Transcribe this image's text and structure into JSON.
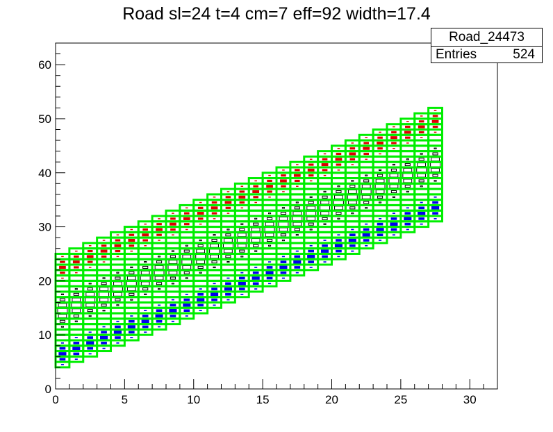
{
  "title": "Road sl=24 t=4 cm=7 eff=92 width=17.4",
  "stats": {
    "name": "Road_24473",
    "entries_label": "Entries",
    "entries_value": "524"
  },
  "colors": {
    "road": "#00ee00",
    "black": "#000000",
    "red": "#dd0000",
    "blue": "#0000ee"
  },
  "chart_data": {
    "type": "heatmap",
    "title": "Road sl=24 t=4 cm=7 eff=92 width=17.4",
    "xlim": [
      0,
      32
    ],
    "ylim": [
      0,
      64
    ],
    "xticks": [
      0,
      5,
      10,
      15,
      20,
      25,
      30
    ],
    "yticks": [
      0,
      10,
      20,
      30,
      40,
      50,
      60
    ],
    "road": {
      "column_width": 1,
      "row_height": 1,
      "rows_per_column": 21,
      "lowest_row_by_column": [
        4,
        5,
        6,
        7,
        8,
        9,
        10,
        11,
        12,
        13,
        14,
        15,
        16,
        17,
        18,
        19,
        20,
        21,
        22,
        23,
        24,
        25,
        26,
        27,
        28,
        29,
        30,
        31
      ]
    },
    "series": [
      {
        "name": "central",
        "color": "black",
        "offset_from_center": 0,
        "width": 3,
        "peak": 1.0
      },
      {
        "name": "upper",
        "color": "red",
        "offset_from_center": 8,
        "width": 2,
        "peak": 0.7
      },
      {
        "name": "lower",
        "color": "blue",
        "offset_from_center": -8,
        "width": 2,
        "peak": 0.8
      }
    ]
  }
}
